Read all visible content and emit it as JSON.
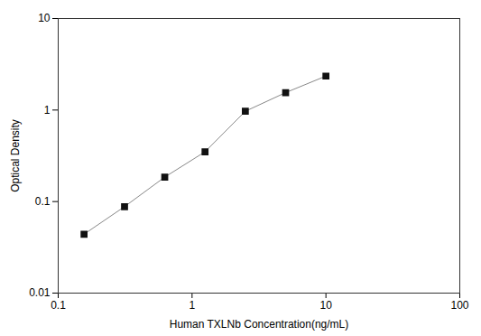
{
  "chart_data": {
    "type": "line",
    "x": [
      0.156,
      0.313,
      0.625,
      1.25,
      2.5,
      5.0,
      10.0
    ],
    "values": [
      0.044,
      0.088,
      0.185,
      0.35,
      0.97,
      1.55,
      2.35
    ],
    "xlabel": "Human TXLNb Concentration(ng/mL)",
    "ylabel": "Optical Density",
    "xlim": [
      0.1,
      100
    ],
    "ylim": [
      0.01,
      10
    ],
    "xticks": [
      0.1,
      1,
      10,
      100
    ],
    "yticks": [
      0.01,
      0.1,
      1,
      10
    ],
    "log": true,
    "grid": false,
    "color": "#888888",
    "colors": [
      "#111111",
      "#111111",
      "#111111",
      "#111111",
      "#111111",
      "#111111",
      "#111111"
    ],
    "marker": "square",
    "line_style": "solid"
  }
}
